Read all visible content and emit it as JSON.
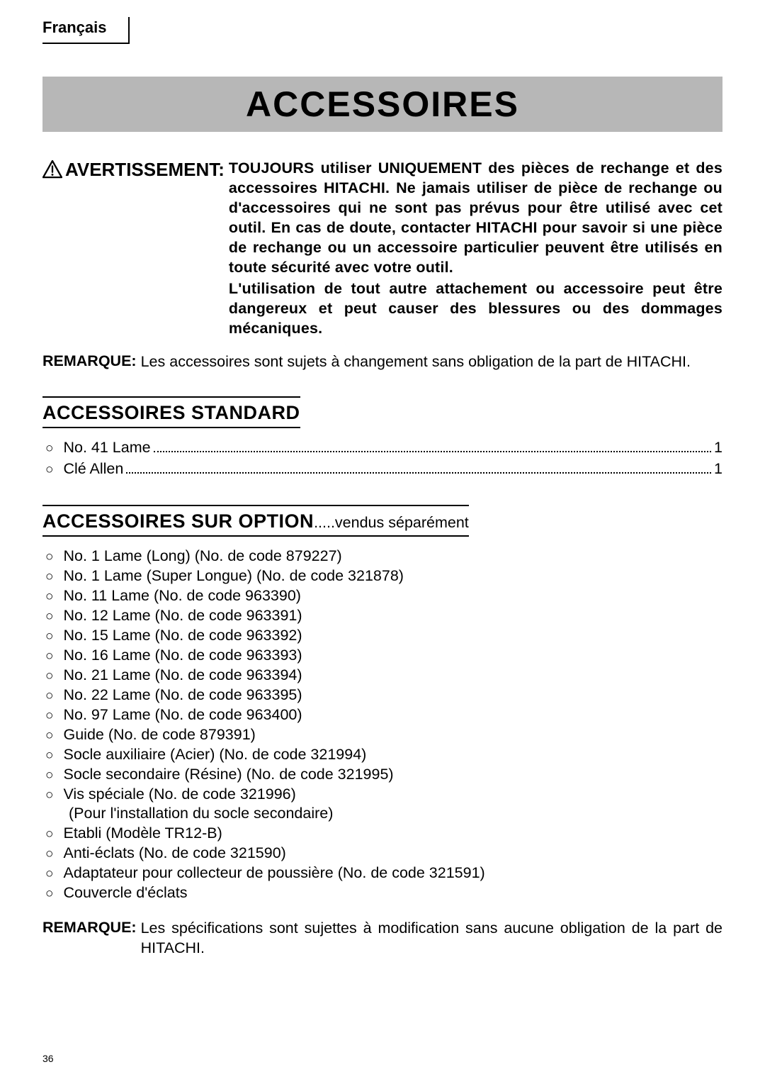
{
  "language_tab": "Français",
  "title": "ACCESSOIRES",
  "warning": {
    "label": "AVERTISSEMENT:",
    "para1": "TOUJOURS utiliser UNIQUEMENT des pièces de rechange et des accessoires HITACHI. Ne jamais utiliser de pièce de rechange ou d'accessoires qui ne sont pas prévus pour être utilisé avec cet outil. En cas de doute, contacter HITACHI pour savoir si une pièce de rechange ou un accessoire particulier peuvent être utilisés en toute sécurité avec votre outil.",
    "para2": "L'utilisation de tout autre attachement ou accessoire peut être dangereux et peut causer des blessures ou des dommages mécaniques."
  },
  "remarque1": {
    "label": "REMARQUE:",
    "text": "Les accessoires sont sujets à changement sans obligation de la part de HITACHI."
  },
  "section_standard": {
    "title": "ACCESSOIRES STANDARD",
    "items": [
      {
        "label": "No. 41 Lame",
        "qty": "1"
      },
      {
        "label": "Clé Allen",
        "qty": "1"
      }
    ]
  },
  "section_option": {
    "title": "ACCESSOIRES SUR OPTION",
    "suffix": ".....vendus séparément",
    "items": [
      {
        "text": "No.   1 Lame (Long) (No. de code 879227)"
      },
      {
        "text": "No.   1 Lame (Super Longue) (No. de code 321878)"
      },
      {
        "text": "No. 11 Lame (No. de code 963390)"
      },
      {
        "text": "No. 12 Lame (No. de code 963391)"
      },
      {
        "text": "No. 15 Lame (No. de code 963392)"
      },
      {
        "text": "No. 16 Lame (No. de code 963393)"
      },
      {
        "text": "No. 21 Lame (No. de code 963394)"
      },
      {
        "text": "No. 22 Lame (No. de code 963395)"
      },
      {
        "text": "No. 97 Lame (No. de code 963400)"
      },
      {
        "text": "Guide  (No. de code 879391)"
      },
      {
        "text": "Socle auxiliaire (Acier) (No. de code 321994)"
      },
      {
        "text": "Socle secondaire (Résine) (No. de code 321995)"
      },
      {
        "text": "Vis spéciale (No. de code 321996)",
        "sub": "(Pour l'installation du socle secondaire)"
      },
      {
        "text": "Etabli (Modèle TR12-B)"
      },
      {
        "text": "Anti-éclats (No. de code 321590)"
      },
      {
        "text": "Adaptateur pour collecteur de poussière (No. de code 321591)"
      },
      {
        "text": "Couvercle d'éclats"
      }
    ]
  },
  "remarque2": {
    "label": "REMARQUE:",
    "text": "Les spécifications sont sujettes à modification sans aucune obligation de la part de HITACHI."
  },
  "page_number": "36",
  "bullet_char": "○"
}
